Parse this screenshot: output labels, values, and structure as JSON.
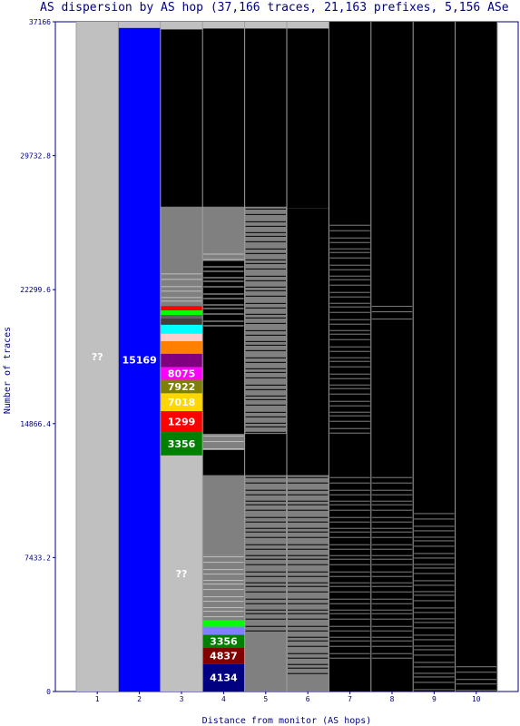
{
  "chart_data": {
    "type": "bar",
    "subtype": "stacked",
    "title": "AS dispersion by AS hop (37,166 traces, 21,163 prefixes, 5,156 ASe",
    "xlabel": "Distance from monitor (AS hops)",
    "ylabel": "Number of traces",
    "ylim": [
      0,
      37166
    ],
    "yticks": [
      "0",
      "7433.2",
      "14866.4",
      "22299.6",
      "29732.8",
      "37166"
    ],
    "categories": [
      "1",
      "2",
      "3",
      "4",
      "5",
      "6",
      "7",
      "8",
      "9",
      "10"
    ],
    "legend": "none",
    "grid": false,
    "colors": {
      "background": "#ffffff",
      "plot_background": "#ffffff",
      "unknown_grey": "#c0c0c0",
      "other_grey": "#808080",
      "terminated_black": "#000000",
      "divider": "#a0a0a0",
      "text": "#000080"
    },
    "hops": [
      {
        "hop": "1",
        "segments": [
          {
            "label": "??",
            "from": 0,
            "to": 37166,
            "color": "#c0c0c0",
            "show_label": true
          }
        ]
      },
      {
        "hop": "2",
        "segments": [
          {
            "label": "15169",
            "from": 0,
            "to": 36830,
            "color": "#0000ff",
            "show_label": true
          },
          {
            "label": "",
            "from": 36830,
            "to": 37166,
            "color": "#c0c0c0",
            "show_label": false
          }
        ]
      },
      {
        "hop": "3",
        "segments": [
          {
            "label": "??",
            "from": 0,
            "to": 13100,
            "color": "#c0c0c0",
            "show_label": true
          },
          {
            "label": "3356",
            "from": 13100,
            "to": 14400,
            "color": "#008000",
            "show_label": true
          },
          {
            "label": "1299",
            "from": 14400,
            "to": 15560,
            "color": "#ff0000",
            "show_label": true
          },
          {
            "label": "7018",
            "from": 15560,
            "to": 16550,
            "color": "#ffd700",
            "show_label": true
          },
          {
            "label": "7922",
            "from": 16550,
            "to": 17300,
            "color": "#808000",
            "show_label": true
          },
          {
            "label": "8075",
            "from": 17300,
            "to": 18000,
            "color": "#ff00ff",
            "show_label": true
          },
          {
            "label": "",
            "from": 18000,
            "to": 18750,
            "color": "#800080",
            "show_label": false
          },
          {
            "label": "",
            "from": 18750,
            "to": 19450,
            "color": "#ff8000",
            "show_label": false
          },
          {
            "label": "",
            "from": 19450,
            "to": 19850,
            "color": "#ffcccc",
            "show_label": false
          },
          {
            "label": "",
            "from": 19850,
            "to": 20350,
            "color": "#00ffff",
            "show_label": false
          },
          {
            "label": "",
            "from": 20350,
            "to": 20700,
            "color": "#404040",
            "show_label": false
          },
          {
            "label": "",
            "from": 20700,
            "to": 20900,
            "color": "#606060",
            "show_label": false
          },
          {
            "label": "",
            "from": 20900,
            "to": 21150,
            "color": "#00ff00",
            "show_label": false
          },
          {
            "label": "",
            "from": 21150,
            "to": 21400,
            "color": "#ff0000",
            "show_label": false
          },
          {
            "label": "",
            "from": 21400,
            "to": 26900,
            "color": "#808080",
            "show_label": false
          },
          {
            "label": "",
            "from": 26900,
            "to": 36750,
            "color": "#000000",
            "show_label": false
          },
          {
            "label": "",
            "from": 36750,
            "to": 37166,
            "color": "#c0c0c0",
            "show_label": false
          }
        ]
      },
      {
        "hop": "4",
        "segments": [
          {
            "label": "4134",
            "from": 0,
            "to": 1550,
            "color": "#000080",
            "show_label": true
          },
          {
            "label": "4837",
            "from": 1550,
            "to": 2450,
            "color": "#800000",
            "show_label": true
          },
          {
            "label": "3356",
            "from": 2450,
            "to": 3150,
            "color": "#008000",
            "show_label": true
          },
          {
            "label": "",
            "from": 3150,
            "to": 3600,
            "color": "#8080ff",
            "show_label": false
          },
          {
            "label": "",
            "from": 3600,
            "to": 3950,
            "color": "#00ff00",
            "show_label": false
          },
          {
            "label": "",
            "from": 3950,
            "to": 7600,
            "color": "#808080",
            "show_label": false
          },
          {
            "label": "",
            "from": 7600,
            "to": 12000,
            "color": "#808080",
            "show_label": false
          },
          {
            "label": "",
            "from": 12000,
            "to": 13400,
            "color": "#000000",
            "show_label": false
          },
          {
            "label": "",
            "from": 13400,
            "to": 14300,
            "color": "#808080",
            "show_label": false
          },
          {
            "label": "",
            "from": 14300,
            "to": 23900,
            "color": "#000000",
            "show_label": false
          },
          {
            "label": "",
            "from": 23900,
            "to": 26900,
            "color": "#808080",
            "show_label": false
          },
          {
            "label": "",
            "from": 26900,
            "to": 36800,
            "color": "#000000",
            "show_label": false
          },
          {
            "label": "",
            "from": 36800,
            "to": 37166,
            "color": "#c0c0c0",
            "show_label": false
          }
        ]
      },
      {
        "hop": "5",
        "segments": [
          {
            "label": "",
            "from": 0,
            "to": 12000,
            "color": "#808080",
            "show_label": false
          },
          {
            "label": "",
            "from": 12000,
            "to": 14300,
            "color": "#000000",
            "show_label": false
          },
          {
            "label": "",
            "from": 14300,
            "to": 26900,
            "color": "#808080",
            "show_label": false
          },
          {
            "label": "",
            "from": 26900,
            "to": 36800,
            "color": "#000000",
            "show_label": false
          },
          {
            "label": "",
            "from": 36800,
            "to": 37166,
            "color": "#c0c0c0",
            "show_label": false
          }
        ]
      },
      {
        "hop": "6",
        "segments": [
          {
            "label": "",
            "from": 0,
            "to": 12000,
            "color": "#808080",
            "show_label": false
          },
          {
            "label": "",
            "from": 12000,
            "to": 26800,
            "color": "#000000",
            "show_label": false
          },
          {
            "label": "",
            "from": 26800,
            "to": 36800,
            "color": "#000000",
            "show_label": false
          },
          {
            "label": "",
            "from": 36800,
            "to": 37166,
            "color": "#c0c0c0",
            "show_label": false
          }
        ]
      },
      {
        "hop": "7",
        "segments": [
          {
            "label": "",
            "from": 0,
            "to": 37166,
            "color": "#000000",
            "show_label": false
          }
        ]
      },
      {
        "hop": "8",
        "segments": [
          {
            "label": "",
            "from": 0,
            "to": 37166,
            "color": "#000000",
            "show_label": false
          }
        ]
      },
      {
        "hop": "9",
        "segments": [
          {
            "label": "",
            "from": 0,
            "to": 37166,
            "color": "#000000",
            "show_label": false
          }
        ]
      },
      {
        "hop": "10",
        "segments": [
          {
            "label": "",
            "from": 0,
            "to": 37166,
            "color": "#000000",
            "show_label": false
          }
        ]
      }
    ],
    "annotations": {
      "stripe_bands": [
        {
          "hop": "3",
          "from": 21400,
          "to": 23300,
          "color": "#c0c0c0"
        },
        {
          "hop": "4",
          "from": 3950,
          "to": 7600,
          "color": "#c0c0c0"
        },
        {
          "hop": "4",
          "from": 13400,
          "to": 14300,
          "color": "#c0c0c0"
        },
        {
          "hop": "4",
          "from": 20000,
          "to": 24400,
          "color": "#c0c0c0"
        },
        {
          "hop": "5",
          "from": 3000,
          "to": 12000,
          "color": "#000000"
        },
        {
          "hop": "5",
          "from": 14300,
          "to": 26900,
          "color": "#000000"
        },
        {
          "hop": "6",
          "from": 600,
          "to": 12000,
          "color": "#000000"
        },
        {
          "hop": "6",
          "from": 23000,
          "to": 26800,
          "color": "#000000"
        },
        {
          "hop": "7",
          "from": 1500,
          "to": 12000,
          "color": "#808080"
        },
        {
          "hop": "7",
          "from": 14300,
          "to": 26000,
          "color": "#808080"
        },
        {
          "hop": "8",
          "from": 1500,
          "to": 12000,
          "color": "#808080"
        },
        {
          "hop": "8",
          "from": 20500,
          "to": 21500,
          "color": "#808080"
        },
        {
          "hop": "9",
          "from": 0,
          "to": 10000,
          "color": "#808080"
        },
        {
          "hop": "10",
          "from": 0,
          "to": 1500,
          "color": "#808080"
        }
      ]
    }
  }
}
